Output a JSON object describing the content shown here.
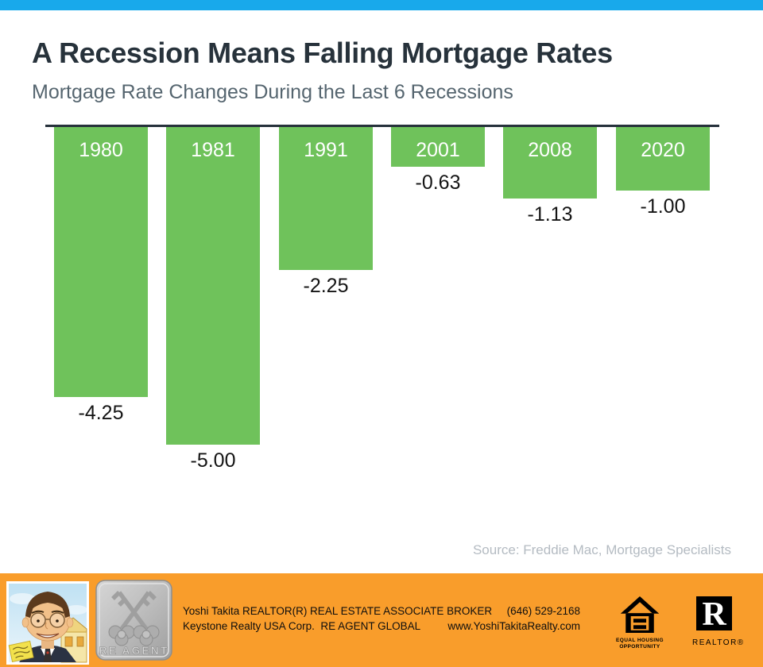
{
  "page": {
    "title": "A Recession Means Falling Mortgage Rates",
    "subtitle": "Mortgage Rate Changes During the Last 6 Recessions",
    "source": "Source: Freddie Mac, Mortgage Specialists"
  },
  "chart_data": {
    "type": "bar",
    "title": "A Recession Means Falling Mortgage Rates",
    "subtitle": "Mortgage Rate Changes During the Last 6 Recessions",
    "categories": [
      "1980",
      "1981",
      "1991",
      "2001",
      "2008",
      "2020"
    ],
    "values": [
      -4.25,
      -5.0,
      -2.25,
      -0.63,
      -1.13,
      -1.0
    ],
    "value_labels": [
      "-4.25",
      "-5.00",
      "-2.25",
      "-0.63",
      "-1.13",
      "-1.00"
    ],
    "xlabel": "",
    "ylabel": "",
    "ylim": [
      -5.25,
      0
    ],
    "baseline_value": 0,
    "grid": false,
    "legend": false,
    "bar_color": "#6FC25B",
    "category_label_position": "inside-top",
    "value_label_position": "below-bar",
    "source": "Source: Freddie Mac, Mortgage Specialists"
  },
  "footer": {
    "agent_line1": "Yoshi Takita REALTOR(R) REAL ESTATE ASSOCIATE BROKER",
    "agent_line2": "Keystone Realty USA Corp.  RE AGENT GLOBAL",
    "phone": "(646) 529-2168",
    "website": "www.YoshiTakitaRealty.com",
    "badge_label": "RE AGENT",
    "eho_line1": "EQUAL HOUSING",
    "eho_line2": "OPPORTUNITY",
    "realtor_r": "R",
    "realtor_label": "REALTOR®"
  },
  "colors": {
    "top_bar": "#18A9EB",
    "footer_bg": "#F99D2B",
    "bar_green": "#6FC25B",
    "title_text": "#27323B",
    "subtitle_text": "#55656F",
    "baseline": "#26313B",
    "value_text": "#141414",
    "source_text": "#B4BBC2"
  }
}
